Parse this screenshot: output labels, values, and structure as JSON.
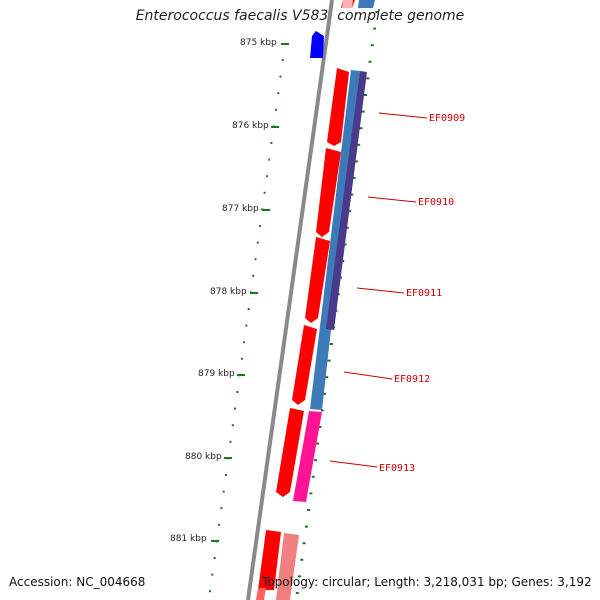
{
  "title": "Enterococcus faecalis V583, complete genome",
  "footer": {
    "accession": "Accession: NC_004668",
    "summary": "Topology: circular; Length: 3,218,031 bp; Genes: 3,192"
  },
  "colors": {
    "backbone": "#8a8a8a",
    "ticks": "#1a7a1a",
    "forward_cds": "#ff0000",
    "forward_cds_light": "#f08080",
    "reverse_cds": "#0000ff",
    "track_blue": "#3d7ab8",
    "track_purple": "#4b3a8c",
    "track_magenta": "#ff1493",
    "label_red": "#cc0000"
  },
  "ticks": [
    {
      "label": "875 kbp"
    },
    {
      "label": "876 kbp"
    },
    {
      "label": "877 kbp"
    },
    {
      "label": "878 kbp"
    },
    {
      "label": "879 kbp"
    },
    {
      "label": "880 kbp"
    },
    {
      "label": "881 kbp"
    }
  ],
  "genes": [
    {
      "label": "EF0909"
    },
    {
      "label": "EF0910"
    },
    {
      "label": "EF0911"
    },
    {
      "label": "EF0912"
    },
    {
      "label": "EF0913"
    }
  ]
}
